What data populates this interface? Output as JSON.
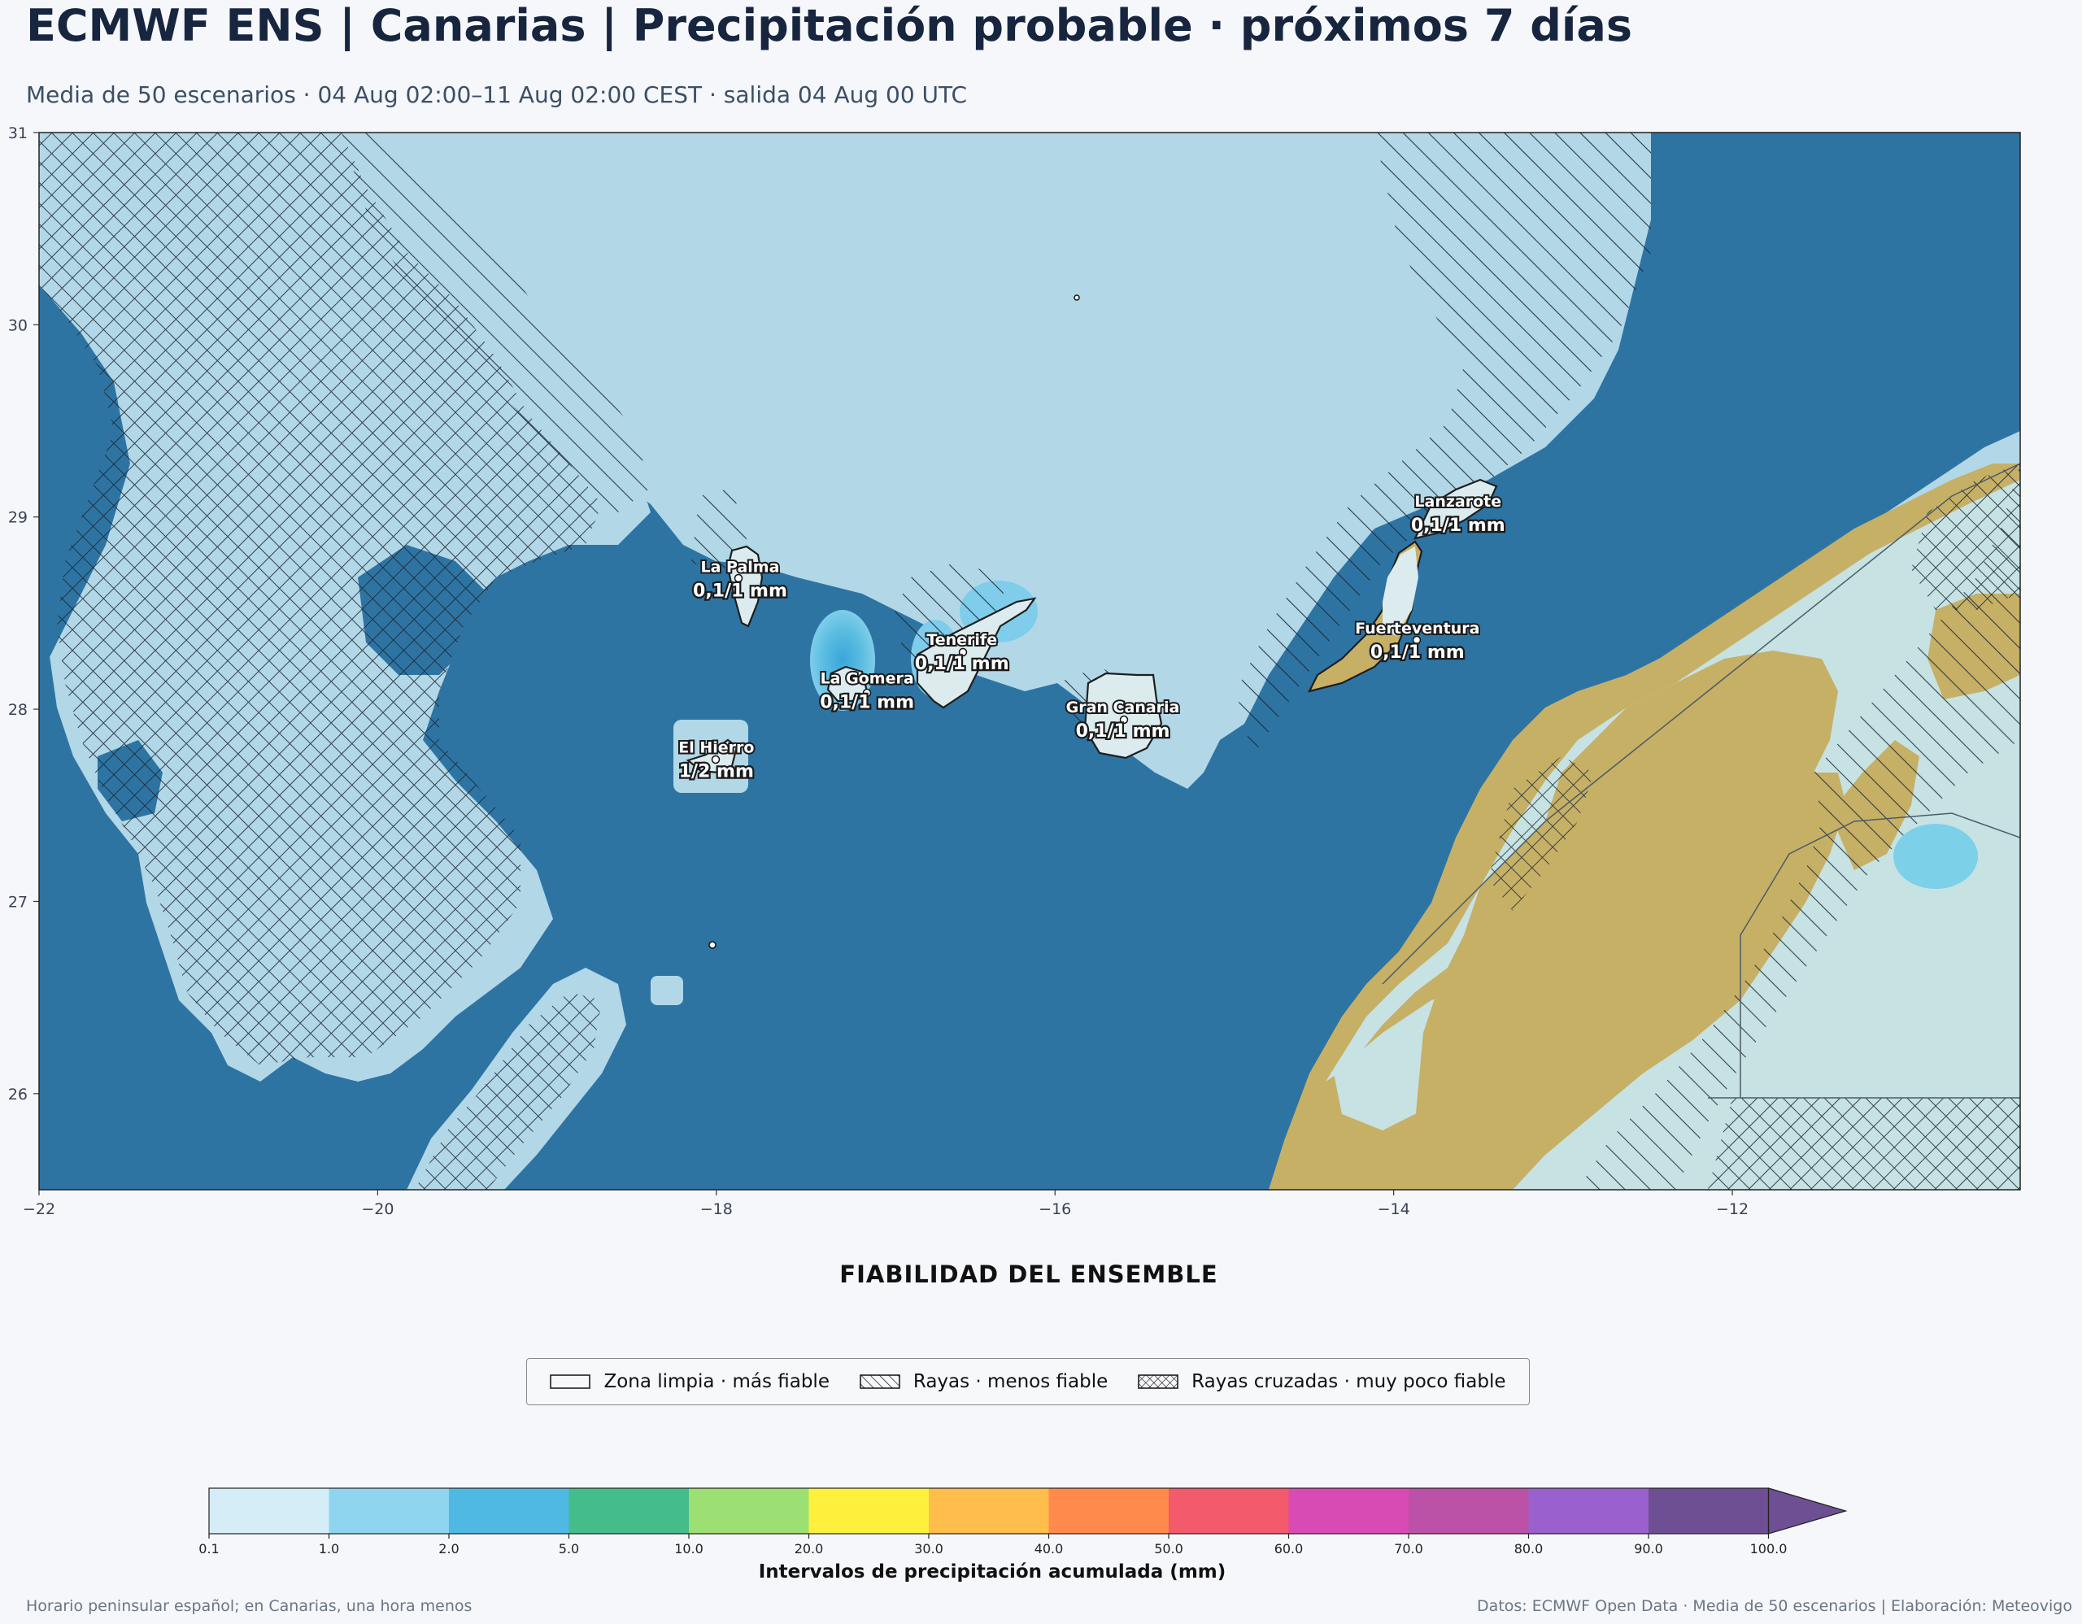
{
  "header": {
    "title": "ECMWF ENS | Canarias | Precipitación probable · próximos 7 días",
    "subtitle": "Media de 50 escenarios · 04 Aug 02:00–11 Aug 02:00 CEST · salida 04 Aug 00 UTC"
  },
  "map": {
    "lon_range": [
      -22,
      -10.3
    ],
    "lat_range": [
      25.5,
      31
    ],
    "x_ticks": [
      "−22",
      "−20",
      "−18",
      "−16",
      "−14",
      "−12"
    ],
    "x_tick_values": [
      -22,
      -20,
      -18,
      -16,
      -14,
      -12
    ],
    "y_ticks": [
      "26",
      "27",
      "28",
      "29",
      "30",
      "31"
    ],
    "y_tick_values": [
      26,
      27,
      28,
      29,
      30,
      31
    ],
    "colors": {
      "ocean": "#2e74a3",
      "light_precip": "#b2d7e7",
      "land": "#c6b066",
      "land_precip": "#c6e2e3",
      "blue_core": "#5bbde0",
      "hatch": "#1b2633"
    },
    "islands": [
      {
        "name": "La Palma",
        "value": "0,1/1 mm",
        "lon": -17.86,
        "lat": 28.68
      },
      {
        "name": "Tenerife",
        "value": "0,1/1 mm",
        "lon": -16.55,
        "lat": 28.3
      },
      {
        "name": "La Gomera",
        "value": "0,1/1 mm",
        "lon": -17.11,
        "lat": 28.1
      },
      {
        "name": "El Hierro",
        "value": "1/2 mm",
        "lon": -18.0,
        "lat": 27.74
      },
      {
        "name": "Gran Canaria",
        "value": "0,1/1 mm",
        "lon": -15.6,
        "lat": 27.95
      },
      {
        "name": "Lanzarote",
        "value": "0,1/1 mm",
        "lon": -13.62,
        "lat": 29.02
      },
      {
        "name": "Fuerteventura",
        "value": "0,1/1 mm",
        "lon": -13.86,
        "lat": 28.36
      }
    ]
  },
  "reliability": {
    "title": "FIABILIDAD DEL ENSEMBLE",
    "items": [
      {
        "label": "Zona limpia · más fiable",
        "pattern": "none"
      },
      {
        "label": "Rayas · menos fiable",
        "pattern": "hatch"
      },
      {
        "label": "Rayas cruzadas · muy poco fiable",
        "pattern": "crosshatch"
      }
    ]
  },
  "colorbar": {
    "label": "Intervalos de precipitación acumulada (mm)",
    "ticks": [
      "0.1",
      "1.0",
      "2.0",
      "5.0",
      "10.0",
      "20.0",
      "30.0",
      "40.0",
      "50.0",
      "60.0",
      "70.0",
      "80.0",
      "90.0",
      "100.0"
    ],
    "colors": [
      "#d4edf7",
      "#8fd5f0",
      "#4fb8e3",
      "#45bd8a",
      "#9ce073",
      "#fff03d",
      "#ffbd4c",
      "#ff8a4c",
      "#f35a6b",
      "#d94bb4",
      "#bb52a8",
      "#9a60cd",
      "#6e4f93"
    ],
    "extend_color": "#6e4f93"
  },
  "footer": {
    "left": "Horario peninsular español; en Canarias, una hora menos",
    "right": "Datos: ECMWF Open Data · Media de 50 escenarios | Elaboración: Meteovigo"
  }
}
